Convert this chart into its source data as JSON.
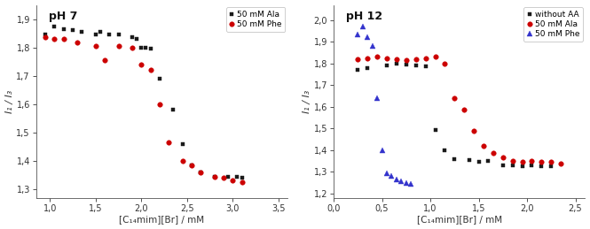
{
  "ph7": {
    "title": "pH 7",
    "xlim": [
      0.85,
      3.6
    ],
    "ylim": [
      1.27,
      1.95
    ],
    "xticks": [
      1.0,
      1.5,
      2.0,
      2.5,
      3.0,
      3.5
    ],
    "yticks": [
      1.3,
      1.4,
      1.5,
      1.6,
      1.7,
      1.8,
      1.9
    ],
    "xlabel": "[C₁₄mim][Br] / mM",
    "ylabel": "I₁ / I₃",
    "series": [
      {
        "label": "50 mM Ala",
        "color": "#1a1a1a",
        "marker": "s",
        "markersize": 3.5,
        "linestyle": "-",
        "x": [
          0.95,
          1.05,
          1.15,
          1.25,
          1.35,
          1.5,
          1.55,
          1.65,
          1.75,
          1.9,
          1.95,
          2.0,
          2.05,
          2.1,
          2.2,
          2.35,
          2.45,
          2.55,
          2.65,
          2.8,
          2.95,
          3.05,
          3.1
        ],
        "y": [
          1.845,
          1.875,
          1.865,
          1.86,
          1.855,
          1.845,
          1.855,
          1.845,
          1.845,
          1.835,
          1.83,
          1.8,
          1.8,
          1.795,
          1.69,
          1.58,
          1.46,
          1.385,
          1.36,
          1.345,
          1.345,
          1.345,
          1.34
        ]
      },
      {
        "label": "50 mM Phe",
        "color": "#cc0000",
        "marker": "o",
        "markersize": 4.0,
        "linestyle": "-",
        "x": [
          0.95,
          1.05,
          1.15,
          1.3,
          1.5,
          1.6,
          1.75,
          1.9,
          2.0,
          2.1,
          2.2,
          2.3,
          2.45,
          2.55,
          2.65,
          2.8,
          2.9,
          3.0,
          3.1
        ],
        "y": [
          1.835,
          1.83,
          1.83,
          1.818,
          1.805,
          1.755,
          1.805,
          1.8,
          1.74,
          1.72,
          1.6,
          1.465,
          1.4,
          1.385,
          1.36,
          1.345,
          1.34,
          1.33,
          1.325
        ]
      }
    ]
  },
  "ph12": {
    "title": "pH 12",
    "xlim": [
      0.1,
      2.6
    ],
    "ylim": [
      1.18,
      2.07
    ],
    "xticks": [
      0.0,
      0.5,
      1.0,
      1.5,
      2.0,
      2.5
    ],
    "yticks": [
      1.2,
      1.3,
      1.4,
      1.5,
      1.6,
      1.7,
      1.8,
      1.9,
      2.0
    ],
    "xlabel": "[C₁₄mim][Br] / mM",
    "ylabel": "I₁ / I₃",
    "series": [
      {
        "label": "without AA",
        "color": "#1a1a1a",
        "marker": "s",
        "markersize": 3.5,
        "linestyle": "-",
        "x": [
          0.25,
          0.35,
          0.55,
          0.65,
          0.75,
          0.85,
          0.95,
          1.05,
          1.15,
          1.25,
          1.4,
          1.5,
          1.6,
          1.75,
          1.85,
          1.95,
          2.05,
          2.15,
          2.25
        ],
        "y": [
          1.77,
          1.78,
          1.79,
          1.8,
          1.795,
          1.79,
          1.785,
          1.495,
          1.4,
          1.36,
          1.355,
          1.345,
          1.35,
          1.33,
          1.33,
          1.325,
          1.33,
          1.325,
          1.325
        ]
      },
      {
        "label": "50 mM Ala",
        "color": "#cc0000",
        "marker": "o",
        "markersize": 4.0,
        "linestyle": "-",
        "x": [
          0.25,
          0.35,
          0.45,
          0.55,
          0.65,
          0.75,
          0.85,
          0.95,
          1.05,
          1.15,
          1.25,
          1.35,
          1.45,
          1.55,
          1.65,
          1.75,
          1.85,
          1.95,
          2.05,
          2.15,
          2.25,
          2.35
        ],
        "y": [
          1.82,
          1.825,
          1.83,
          1.825,
          1.82,
          1.815,
          1.82,
          1.825,
          1.83,
          1.8,
          1.64,
          1.585,
          1.49,
          1.42,
          1.385,
          1.365,
          1.35,
          1.345,
          1.35,
          1.345,
          1.345,
          1.34
        ]
      },
      {
        "label": "50 mM Phe",
        "color": "#3333cc",
        "marker": "^",
        "markersize": 5.0,
        "linestyle": "--",
        "x": [
          0.25,
          0.3,
          0.35,
          0.4,
          0.45,
          0.5,
          0.55,
          0.6,
          0.65,
          0.7,
          0.75,
          0.8
        ],
        "y": [
          1.935,
          1.97,
          1.92,
          1.88,
          1.64,
          1.4,
          1.295,
          1.28,
          1.265,
          1.255,
          1.25,
          1.245
        ]
      }
    ]
  }
}
